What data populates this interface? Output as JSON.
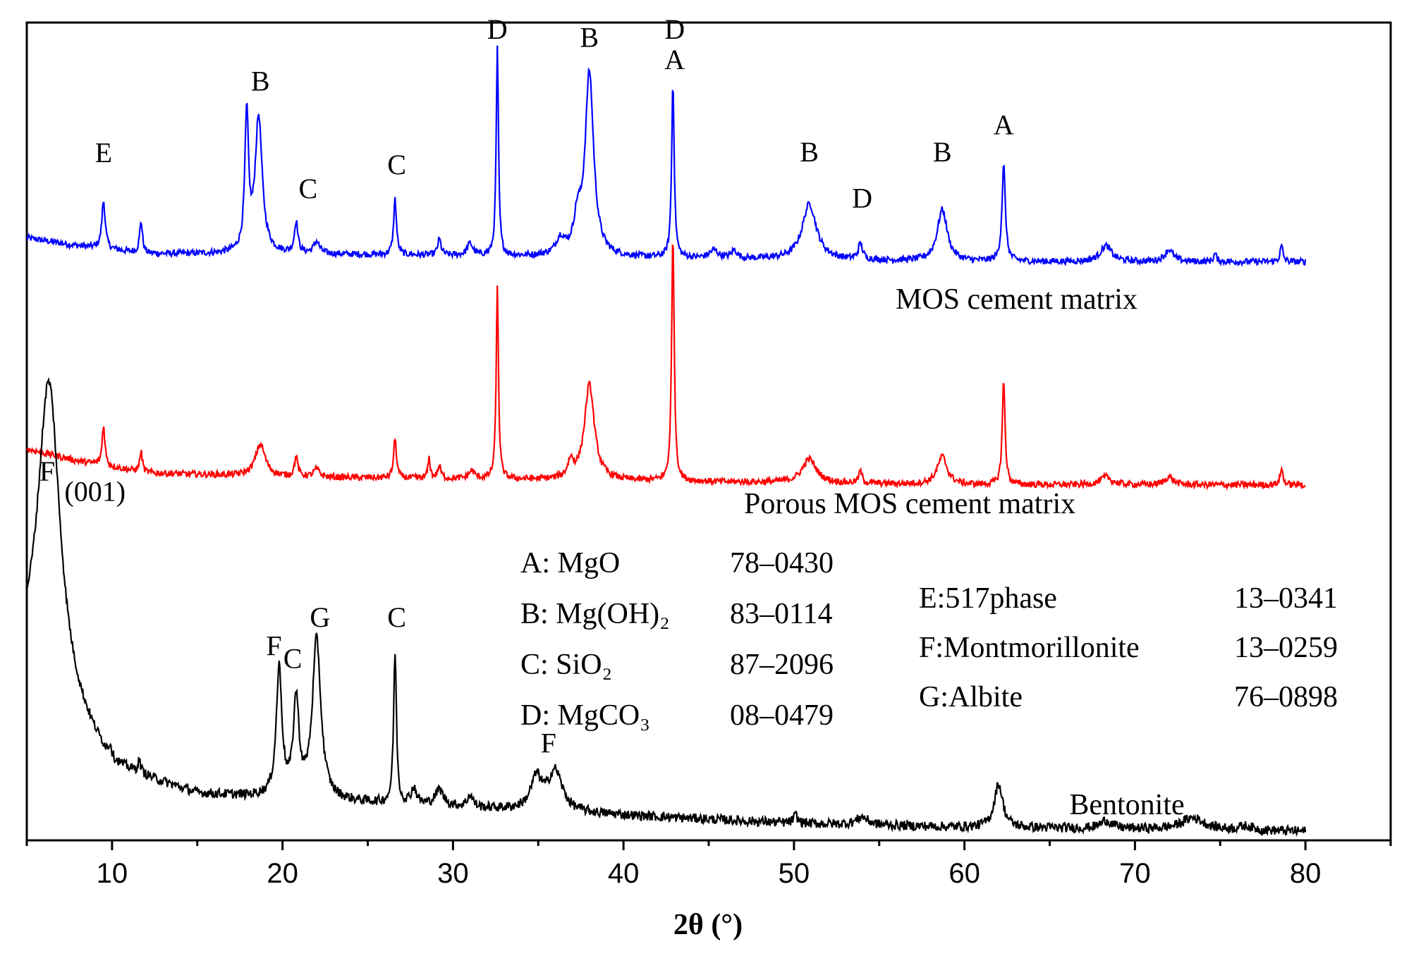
{
  "chart_data": {
    "type": "line",
    "title": "",
    "xlabel": "2θ (°)",
    "ylabel": "",
    "xlim": [
      5,
      85
    ],
    "ylim": [
      0,
      1
    ],
    "x_ticks": [
      10,
      20,
      30,
      40,
      50,
      60,
      70,
      80
    ],
    "x_tick_labels": [
      "10",
      "20",
      "30",
      "40",
      "50",
      "60",
      "70",
      "80"
    ],
    "grid": false,
    "series": [
      {
        "name": "MOS cement matrix",
        "color": "#0000ff",
        "x_range": [
          5.0,
          80.0
        ],
        "baseline": 0.72,
        "background": [
          [
            5,
            0.75
          ],
          [
            8,
            0.74
          ],
          [
            12,
            0.73
          ],
          [
            20,
            0.73
          ],
          [
            40,
            0.725
          ],
          [
            60,
            0.72
          ],
          [
            80,
            0.72
          ]
        ],
        "noise": 0.004,
        "peaks": [
          {
            "x": 9.5,
            "h": 0.06,
            "w": 0.12
          },
          {
            "x": 11.7,
            "h": 0.04,
            "w": 0.1
          },
          {
            "x": 17.9,
            "h": 0.17,
            "w": 0.13
          },
          {
            "x": 18.6,
            "h": 0.17,
            "w": 0.25
          },
          {
            "x": 20.8,
            "h": 0.04,
            "w": 0.12
          },
          {
            "x": 22.0,
            "h": 0.015,
            "w": 0.2
          },
          {
            "x": 26.6,
            "h": 0.07,
            "w": 0.1
          },
          {
            "x": 29.2,
            "h": 0.02,
            "w": 0.12
          },
          {
            "x": 31.0,
            "h": 0.015,
            "w": 0.2
          },
          {
            "x": 32.6,
            "h": 0.26,
            "w": 0.08
          },
          {
            "x": 36.3,
            "h": 0.02,
            "w": 0.3
          },
          {
            "x": 37.3,
            "h": 0.04,
            "w": 0.25
          },
          {
            "x": 38.0,
            "h": 0.23,
            "w": 0.3
          },
          {
            "x": 42.9,
            "h": 0.22,
            "w": 0.09
          },
          {
            "x": 45.3,
            "h": 0.01,
            "w": 0.3
          },
          {
            "x": 46.5,
            "h": 0.01,
            "w": 0.2
          },
          {
            "x": 50.9,
            "h": 0.07,
            "w": 0.5
          },
          {
            "x": 53.9,
            "h": 0.02,
            "w": 0.15
          },
          {
            "x": 58.7,
            "h": 0.065,
            "w": 0.35
          },
          {
            "x": 62.3,
            "h": 0.12,
            "w": 0.12
          },
          {
            "x": 68.3,
            "h": 0.02,
            "w": 0.4
          },
          {
            "x": 72.0,
            "h": 0.015,
            "w": 0.3
          },
          {
            "x": 74.7,
            "h": 0.01,
            "w": 0.1
          },
          {
            "x": 78.6,
            "h": 0.02,
            "w": 0.1
          }
        ],
        "label": "MOS cement matrix"
      },
      {
        "name": "Porous MOS cement matrix",
        "color": "#ff0000",
        "x_range": [
          5.0,
          80.0
        ],
        "baseline": 0.44,
        "background": [
          [
            5,
            0.485
          ],
          [
            8,
            0.47
          ],
          [
            12,
            0.455
          ],
          [
            20,
            0.45
          ],
          [
            40,
            0.445
          ],
          [
            60,
            0.44
          ],
          [
            80,
            0.44
          ]
        ],
        "noise": 0.004,
        "peaks": [
          {
            "x": 9.5,
            "h": 0.05,
            "w": 0.1
          },
          {
            "x": 11.7,
            "h": 0.025,
            "w": 0.1
          },
          {
            "x": 18.7,
            "h": 0.04,
            "w": 0.35
          },
          {
            "x": 20.8,
            "h": 0.025,
            "w": 0.12
          },
          {
            "x": 22.0,
            "h": 0.01,
            "w": 0.2
          },
          {
            "x": 26.6,
            "h": 0.05,
            "w": 0.1
          },
          {
            "x": 28.6,
            "h": 0.025,
            "w": 0.08
          },
          {
            "x": 29.2,
            "h": 0.015,
            "w": 0.12
          },
          {
            "x": 31.1,
            "h": 0.01,
            "w": 0.2
          },
          {
            "x": 32.6,
            "h": 0.24,
            "w": 0.08
          },
          {
            "x": 36.9,
            "h": 0.02,
            "w": 0.2
          },
          {
            "x": 38.0,
            "h": 0.12,
            "w": 0.35
          },
          {
            "x": 42.9,
            "h": 0.31,
            "w": 0.09
          },
          {
            "x": 50.9,
            "h": 0.03,
            "w": 0.5
          },
          {
            "x": 53.9,
            "h": 0.015,
            "w": 0.12
          },
          {
            "x": 58.7,
            "h": 0.035,
            "w": 0.35
          },
          {
            "x": 62.3,
            "h": 0.13,
            "w": 0.1
          },
          {
            "x": 68.3,
            "h": 0.01,
            "w": 0.4
          },
          {
            "x": 72.0,
            "h": 0.01,
            "w": 0.3
          },
          {
            "x": 78.6,
            "h": 0.02,
            "w": 0.1
          }
        ],
        "label": "Porous MOS cement matrix"
      },
      {
        "name": "Bentonite",
        "color": "#000000",
        "x_range": [
          5.0,
          80.0
        ],
        "baseline": 0.0,
        "background": [
          [
            5,
            0.2
          ],
          [
            8,
            0.13
          ],
          [
            10,
            0.08
          ],
          [
            15,
            0.05
          ],
          [
            20,
            0.045
          ],
          [
            25,
            0.04
          ],
          [
            30,
            0.035
          ],
          [
            40,
            0.025
          ],
          [
            50,
            0.015
          ],
          [
            60,
            0.01
          ],
          [
            70,
            0.008
          ],
          [
            80,
            0.005
          ]
        ],
        "noise": 0.006,
        "peaks": [
          {
            "x": 6.3,
            "h": 0.4,
            "w": 0.8
          },
          {
            "x": 9.9,
            "h": 0.015,
            "w": 0.1
          },
          {
            "x": 11.6,
            "h": 0.015,
            "w": 0.1
          },
          {
            "x": 19.8,
            "h": 0.16,
            "w": 0.2
          },
          {
            "x": 20.8,
            "h": 0.12,
            "w": 0.2
          },
          {
            "x": 22.0,
            "h": 0.2,
            "w": 0.3
          },
          {
            "x": 26.6,
            "h": 0.19,
            "w": 0.1
          },
          {
            "x": 27.7,
            "h": 0.02,
            "w": 0.2
          },
          {
            "x": 29.2,
            "h": 0.02,
            "w": 0.3
          },
          {
            "x": 31.0,
            "h": 0.015,
            "w": 0.2
          },
          {
            "x": 34.9,
            "h": 0.04,
            "w": 0.4
          },
          {
            "x": 36.0,
            "h": 0.05,
            "w": 0.5
          },
          {
            "x": 50.1,
            "h": 0.01,
            "w": 0.15
          },
          {
            "x": 54.0,
            "h": 0.01,
            "w": 0.4
          },
          {
            "x": 62.0,
            "h": 0.055,
            "w": 0.3
          },
          {
            "x": 68.3,
            "h": 0.01,
            "w": 0.4
          },
          {
            "x": 73.4,
            "h": 0.015,
            "w": 0.8
          },
          {
            "x": 76.5,
            "h": 0.005,
            "w": 0.5
          }
        ],
        "label": "Bentonite"
      }
    ],
    "peak_labels": [
      {
        "text": "E",
        "x": 9.5,
        "y": 0.845
      },
      {
        "text": "B",
        "x": 18.7,
        "y": 0.935
      },
      {
        "text": "C",
        "x": 21.5,
        "y": 0.8
      },
      {
        "text": "C",
        "x": 26.7,
        "y": 0.83
      },
      {
        "text": "D",
        "x": 32.6,
        "y": 1.0
      },
      {
        "text": "B",
        "x": 38.0,
        "y": 0.99
      },
      {
        "text": "D",
        "x": 43.0,
        "y": 1.0
      },
      {
        "text": "A",
        "x": 43.0,
        "y": 0.962
      },
      {
        "text": "B",
        "x": 50.9,
        "y": 0.846
      },
      {
        "text": "D",
        "x": 54.0,
        "y": 0.788
      },
      {
        "text": "B",
        "x": 58.7,
        "y": 0.846
      },
      {
        "text": "A",
        "x": 62.3,
        "y": 0.88
      },
      {
        "text": "F",
        "x": 6.2,
        "y": 0.445
      },
      {
        "text": "(001)",
        "x": 9.0,
        "y": 0.42
      },
      {
        "text": "F",
        "x": 19.5,
        "y": 0.226
      },
      {
        "text": "C",
        "x": 20.6,
        "y": 0.21
      },
      {
        "text": "G",
        "x": 22.2,
        "y": 0.262
      },
      {
        "text": "C",
        "x": 26.7,
        "y": 0.262
      },
      {
        "text": "F",
        "x": 35.6,
        "y": 0.104
      }
    ],
    "legend": {
      "left": [
        {
          "phase": "A: MgO",
          "pdf": "78–0430"
        },
        {
          "phase": "B: Mg(OH)₂",
          "pdf": "83–0114"
        },
        {
          "phase": "C: SiO₂",
          "pdf": "87–2096"
        },
        {
          "phase": "D: MgCO₃",
          "pdf": "08–0479"
        }
      ],
      "right": [
        {
          "phase": "E:517phase",
          "pdf": "13–0341"
        },
        {
          "phase": "F:Montmorillonite",
          "pdf": "13–0259"
        },
        {
          "phase": "G:Albite",
          "pdf": "76–0898"
        }
      ]
    }
  }
}
